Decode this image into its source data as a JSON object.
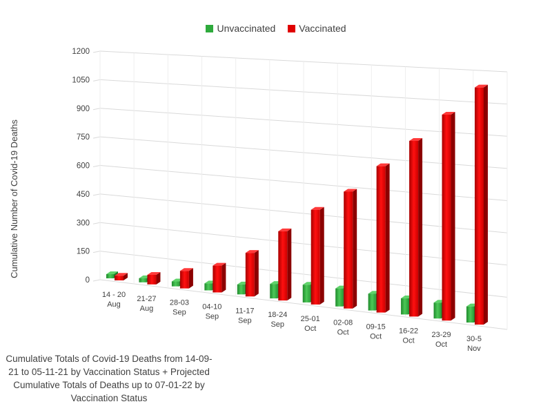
{
  "chart_data": {
    "type": "bar",
    "title": "",
    "xlabel": "",
    "ylabel": "Cumulative Number of Covid-19 Deaths",
    "ylim": [
      0,
      1200
    ],
    "yticks": [
      0,
      150,
      300,
      450,
      600,
      750,
      900,
      1050,
      1200
    ],
    "grid": true,
    "legend_position": "top-center",
    "categories": [
      [
        "14 - 20",
        "Aug"
      ],
      [
        "21-27",
        "Aug"
      ],
      [
        "28-03",
        "Sep"
      ],
      [
        "04-10",
        "Sep"
      ],
      [
        "11-17",
        "Sep"
      ],
      [
        "18-24",
        "Sep"
      ],
      [
        "25-01",
        "Oct"
      ],
      [
        "02-08",
        "Oct"
      ],
      [
        "09-15",
        "Oct"
      ],
      [
        "16-22",
        "Oct"
      ],
      [
        "23-29",
        "Oct"
      ],
      [
        "30-5",
        "Nov"
      ]
    ],
    "series": [
      {
        "name": "Unvaccinated",
        "color": "#2eaa3c",
        "values": [
          8,
          12,
          18,
          25,
          35,
          50,
          60,
          60,
          55,
          52,
          50,
          50
        ]
      },
      {
        "name": "Vaccinated",
        "color": "#e00000",
        "values": [
          25,
          50,
          90,
          135,
          215,
          335,
          450,
          545,
          670,
          790,
          910,
          1030
        ]
      }
    ]
  },
  "caption": "Cumulative Totals of Covid-19 Deaths from 14-09-21 to 05-11-21 by Vaccination Status + Projected Cumulative Totals of Deaths up to 07-01-22 by Vaccination Status"
}
